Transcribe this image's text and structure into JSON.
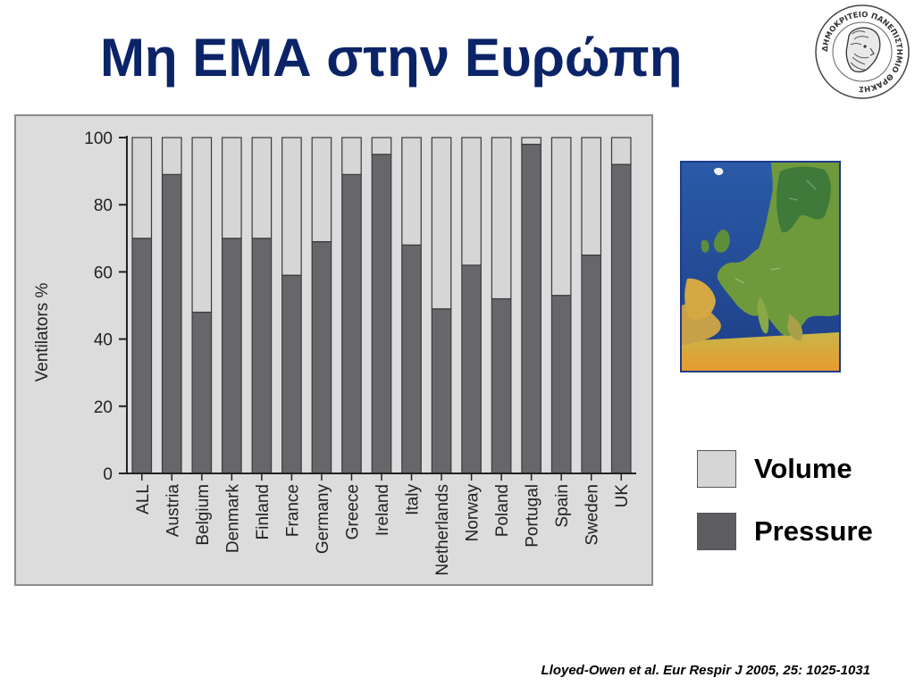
{
  "slide": {
    "title": "Μη ΕΜΑ στην Ευρώπη",
    "citation": "Lloyed-Owen et al. Eur Respir J 2005, 25: 1025-1031",
    "logo_text": "ΔΗΜΟΚΡΙΤΕΙΟ ΠΑΝΕΠΙΣΤΗΜΙΟ ΘΡΑΚΗΣ"
  },
  "legend": {
    "items": [
      {
        "label": "Volume",
        "color": "#d6d6d6"
      },
      {
        "label": "Pressure",
        "color": "#5e5e62"
      }
    ]
  },
  "chart_data": {
    "type": "bar",
    "stacked": true,
    "categories": [
      "ALL",
      "Austria",
      "Belgium",
      "Denmark",
      "Finland",
      "France",
      "Germany",
      "Greece",
      "Ireland",
      "Italy",
      "Netherlands",
      "Norway",
      "Poland",
      "Portugal",
      "Spain",
      "Sweden",
      "UK"
    ],
    "series": [
      {
        "name": "Pressure",
        "color": "#67676b",
        "values": [
          70,
          89,
          48,
          70,
          70,
          59,
          69,
          89,
          95,
          68,
          49,
          62,
          52,
          98,
          53,
          65,
          92
        ]
      },
      {
        "name": "Volume",
        "color": "#d6d6d6",
        "values": [
          30,
          11,
          52,
          30,
          30,
          41,
          31,
          11,
          5,
          32,
          51,
          38,
          48,
          2,
          47,
          35,
          8
        ]
      }
    ],
    "ylabel": "Ventilators %",
    "xlabel": "",
    "ylim": [
      0,
      100
    ],
    "yticks": [
      0,
      20,
      40,
      60,
      80,
      100
    ],
    "grid": false
  }
}
